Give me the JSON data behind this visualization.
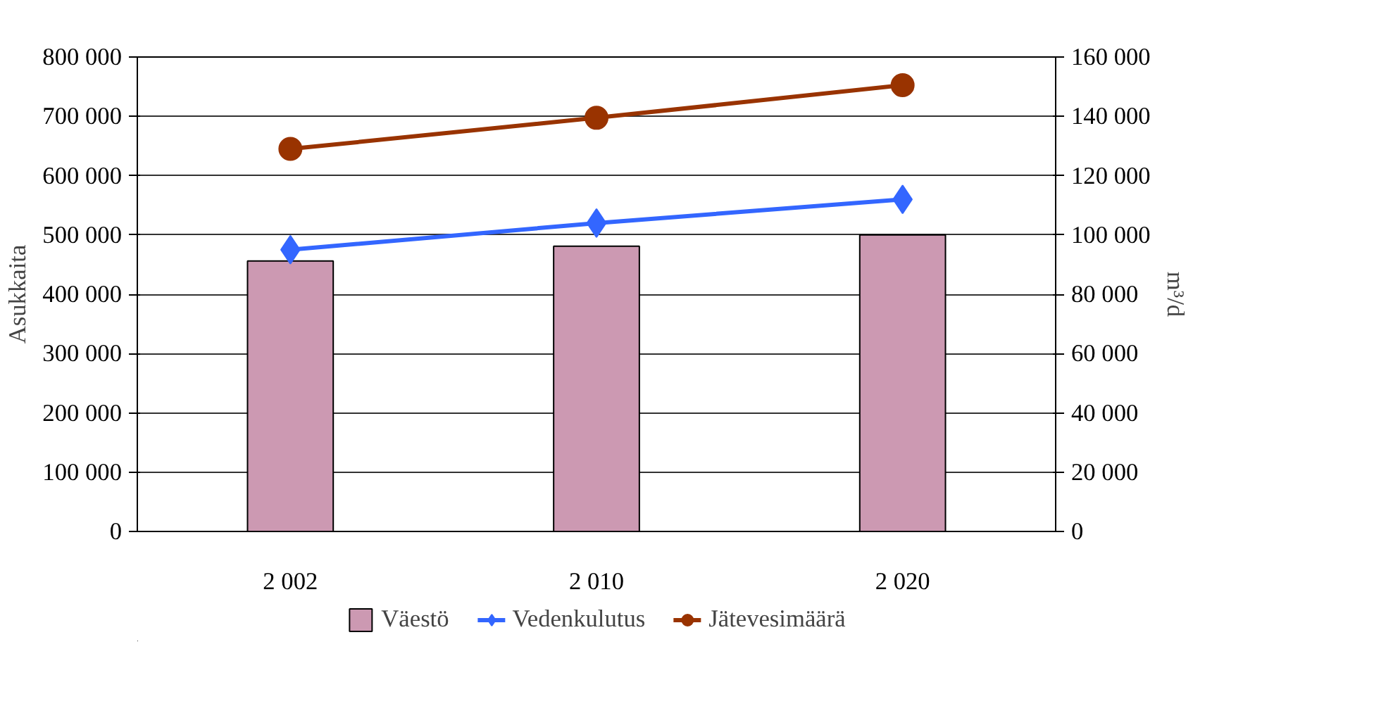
{
  "chart_data": {
    "type": "bar",
    "categories": [
      "2 002",
      "2 010",
      "2 020"
    ],
    "ylabel": "Asukkaita",
    "y2label": "m³/d",
    "series": [
      {
        "name": "Väestö",
        "color": "#cc99b2",
        "values": [
          456000,
          481000,
          500000
        ]
      },
      {
        "name": "Vedenkulutus",
        "type": "line",
        "axis": "y2",
        "marker": "diamond",
        "color": "#3366ff",
        "values": [
          95000,
          104000,
          112000
        ]
      },
      {
        "name": "Jätevesimäärä",
        "type": "line",
        "axis": "y2",
        "marker": "circle",
        "color": "#993300",
        "values": [
          129000,
          139500,
          150500
        ]
      }
    ],
    "ylim": [
      0,
      800000
    ],
    "yticks": [
      {
        "value": 0,
        "label": "0"
      },
      {
        "value": 100000,
        "label": "100 000"
      },
      {
        "value": 200000,
        "label": "200 000"
      },
      {
        "value": 300000,
        "label": "300 000"
      },
      {
        "value": 400000,
        "label": "400 000"
      },
      {
        "value": 500000,
        "label": "500 000"
      },
      {
        "value": 600000,
        "label": "600 000"
      },
      {
        "value": 700000,
        "label": "700 000"
      },
      {
        "value": 800000,
        "label": "800 000"
      }
    ],
    "y2lim": [
      0,
      160000
    ],
    "y2ticks": [
      {
        "value": 0,
        "label": "0"
      },
      {
        "value": 20000,
        "label": "20 000"
      },
      {
        "value": 40000,
        "label": "40 000"
      },
      {
        "value": 60000,
        "label": "60 000"
      },
      {
        "value": 80000,
        "label": "80 000"
      },
      {
        "value": 100000,
        "label": "100 000"
      },
      {
        "value": 120000,
        "label": "120 000"
      },
      {
        "value": 140000,
        "label": "140 000"
      },
      {
        "value": 160000,
        "label": "160 000"
      }
    ],
    "grid": "y",
    "legend": "bottom"
  }
}
